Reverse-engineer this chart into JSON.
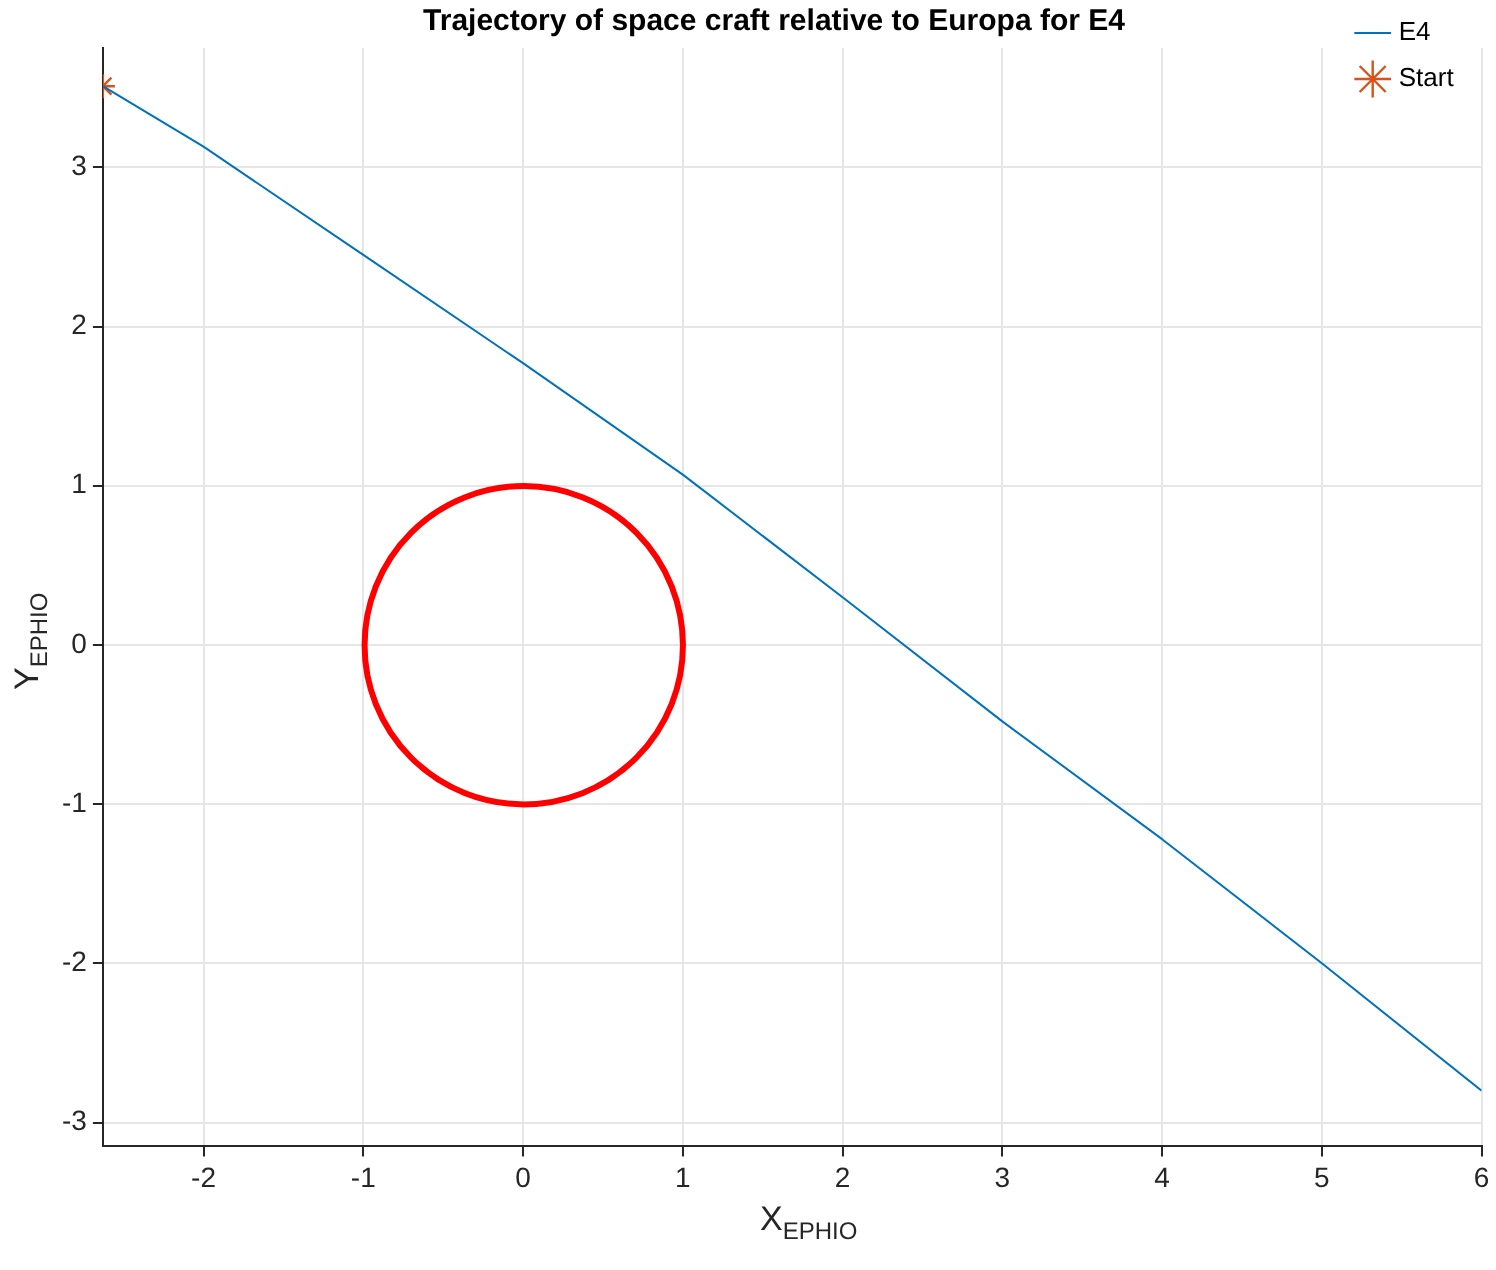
{
  "chart_data": {
    "type": "line",
    "title": "Trajectory of space craft relative to Europa for E4",
    "xlabel": "X$_{EPHIO}$",
    "ylabel": "Y$_{EPHIO}$",
    "series": [
      {
        "name": "E4",
        "color": "#0072bd",
        "x": [
          -2.63,
          -2,
          -1,
          0,
          1,
          2,
          3,
          4,
          5,
          6
        ],
        "values": [
          3.51,
          3.13,
          2.45,
          1.77,
          1.07,
          0.3,
          -0.48,
          -1.22,
          -2.0,
          -2.8
        ]
      },
      {
        "name": "Start",
        "type": "scatter",
        "marker": "cross",
        "color": "#d95319",
        "x": [
          -2.63
        ],
        "values": [
          3.51
        ]
      }
    ],
    "xlim": [
      -2.63,
      6
    ],
    "ylim": [
      -3.15,
      3.75
    ],
    "xticks": [
      -2,
      -1,
      0,
      1,
      2,
      3,
      4,
      5,
      6
    ],
    "yticks": [
      -3,
      -2,
      -1,
      0,
      1,
      2,
      3
    ],
    "grid": true,
    "legend": "top right"
  }
}
